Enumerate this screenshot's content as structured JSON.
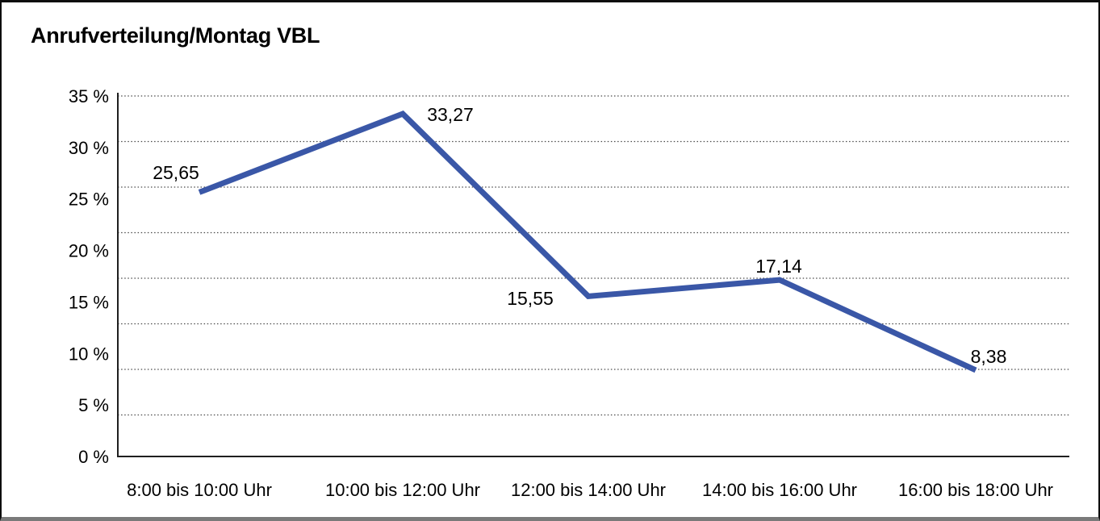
{
  "window": {
    "background": "#ffffff",
    "frame_border_color": "#0d0d0d",
    "frame_bottom_color": "#7a7a7a"
  },
  "chart_data": {
    "type": "line",
    "title": "Anrufverteilung/Montag VBL",
    "categories": [
      "8:00 bis 10:00 Uhr",
      "10:00 bis 12:00 Uhr",
      "12:00 bis 14:00 Uhr",
      "14:00 bis 16:00 Uhr",
      "16:00 bis 18:00 Uhr"
    ],
    "values": [
      25.65,
      33.27,
      15.55,
      17.14,
      8.38
    ],
    "data_labels": [
      "25,65",
      "33,27",
      "15,55",
      "17,14",
      "8,38"
    ],
    "ylim": [
      0,
      35
    ],
    "yticks": [
      {
        "value": 35,
        "label": "35 %"
      },
      {
        "value": 30,
        "label": "30 %"
      },
      {
        "value": 25,
        "label": "25 %"
      },
      {
        "value": 20,
        "label": "20 %"
      },
      {
        "value": 15,
        "label": "15 %"
      },
      {
        "value": 10,
        "label": "10 %"
      },
      {
        "value": 5,
        "label": "5 %"
      },
      {
        "value": 0,
        "label": "0 %"
      }
    ],
    "grid": "horizontal-dotted",
    "legend": "none",
    "line_color": "#3a57a7",
    "text_color": "#000000",
    "axis_color": "#1f1f1f",
    "gridline_color": "#4a4a4a"
  }
}
